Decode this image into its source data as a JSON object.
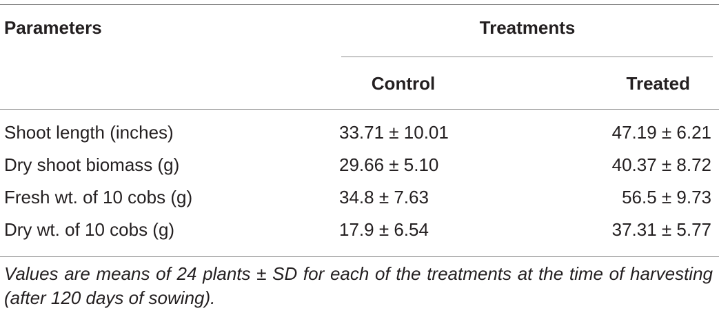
{
  "table": {
    "header": {
      "parameters": "Parameters",
      "treatments": "Treatments",
      "columns": [
        "Control",
        "Treated"
      ]
    },
    "rows": [
      [
        "Shoot length (inches)",
        "33.71 ± 10.01",
        "47.19 ± 6.21"
      ],
      [
        "Dry shoot biomass (g)",
        "29.66 ± 5.10",
        "40.37 ± 8.72"
      ],
      [
        "Fresh wt. of 10 cobs (g)",
        "34.8 ± 7.63",
        "56.5 ± 9.73"
      ],
      [
        "Dry wt. of 10 cobs (g)",
        "17.9 ± 6.54",
        "37.31 ± 5.77"
      ]
    ]
  },
  "footnote": "Values are means of 24 plants ± SD for each of the treatments at the time of harvesting (after 120 days of sowing)."
}
